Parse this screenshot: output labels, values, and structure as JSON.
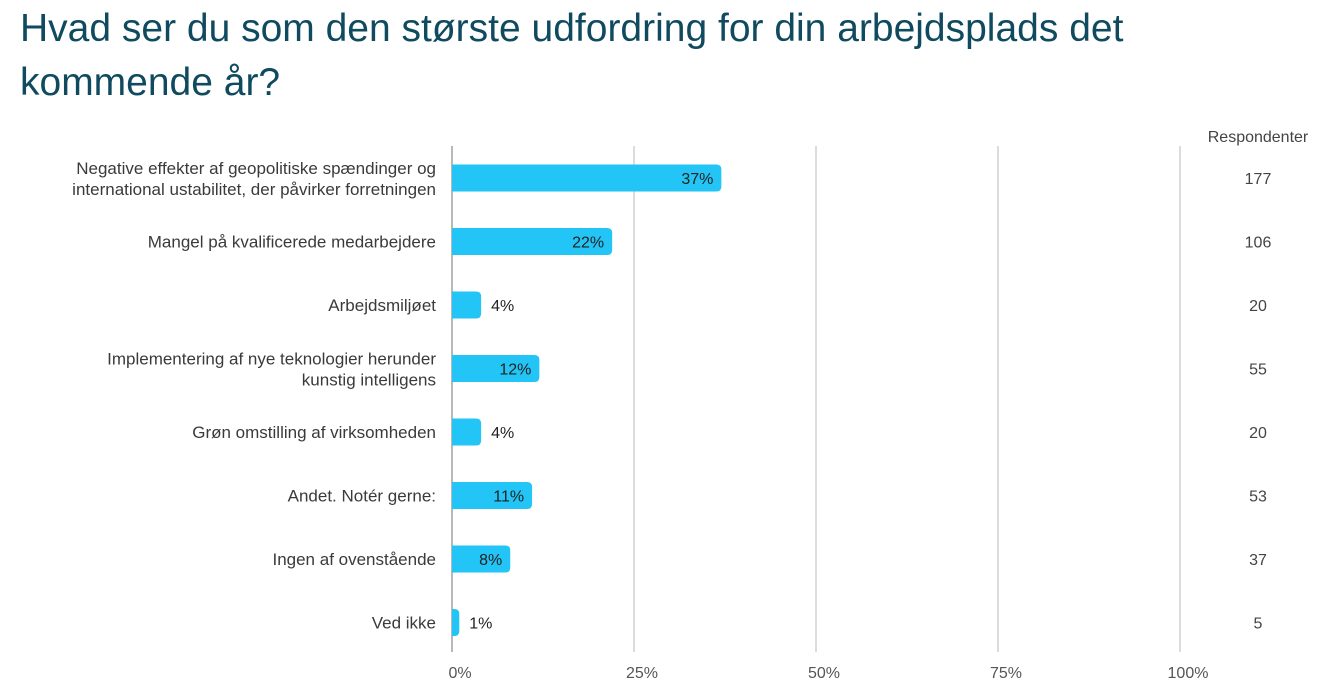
{
  "chart_data": {
    "type": "bar",
    "orientation": "horizontal",
    "title": "Hvad ser du som den største udfordring for din arbejdsplads det kommende år?",
    "categories": [
      [
        "Negative effekter af geopolitiske spændinger og",
        "international ustabilitet, der påvirker forretningen"
      ],
      [
        "Mangel på kvalificerede medarbejdere"
      ],
      [
        "Arbejdsmiljøet"
      ],
      [
        "Implementering af nye teknologier herunder",
        "kunstig intelligens"
      ],
      [
        "Grøn omstilling af virksomheden"
      ],
      [
        "Andet. Notér gerne:"
      ],
      [
        "Ingen af ovenstående"
      ],
      [
        "Ved ikke"
      ]
    ],
    "values": [
      37,
      22,
      4,
      12,
      4,
      11,
      8,
      1
    ],
    "value_labels": [
      "37%",
      "22%",
      "4%",
      "12%",
      "4%",
      "11%",
      "8%",
      "1%"
    ],
    "respondents_header": "Respondenter",
    "respondents": [
      "177",
      "106",
      "20",
      "55",
      "20",
      "53",
      "37",
      "5"
    ],
    "xlim": [
      0,
      100
    ],
    "xticks": [
      0,
      25,
      50,
      75,
      100
    ],
    "xtick_labels": [
      "0%",
      "25%",
      "50%",
      "75%",
      "100%"
    ],
    "grid": true,
    "bar_color": "#22c5f5"
  }
}
